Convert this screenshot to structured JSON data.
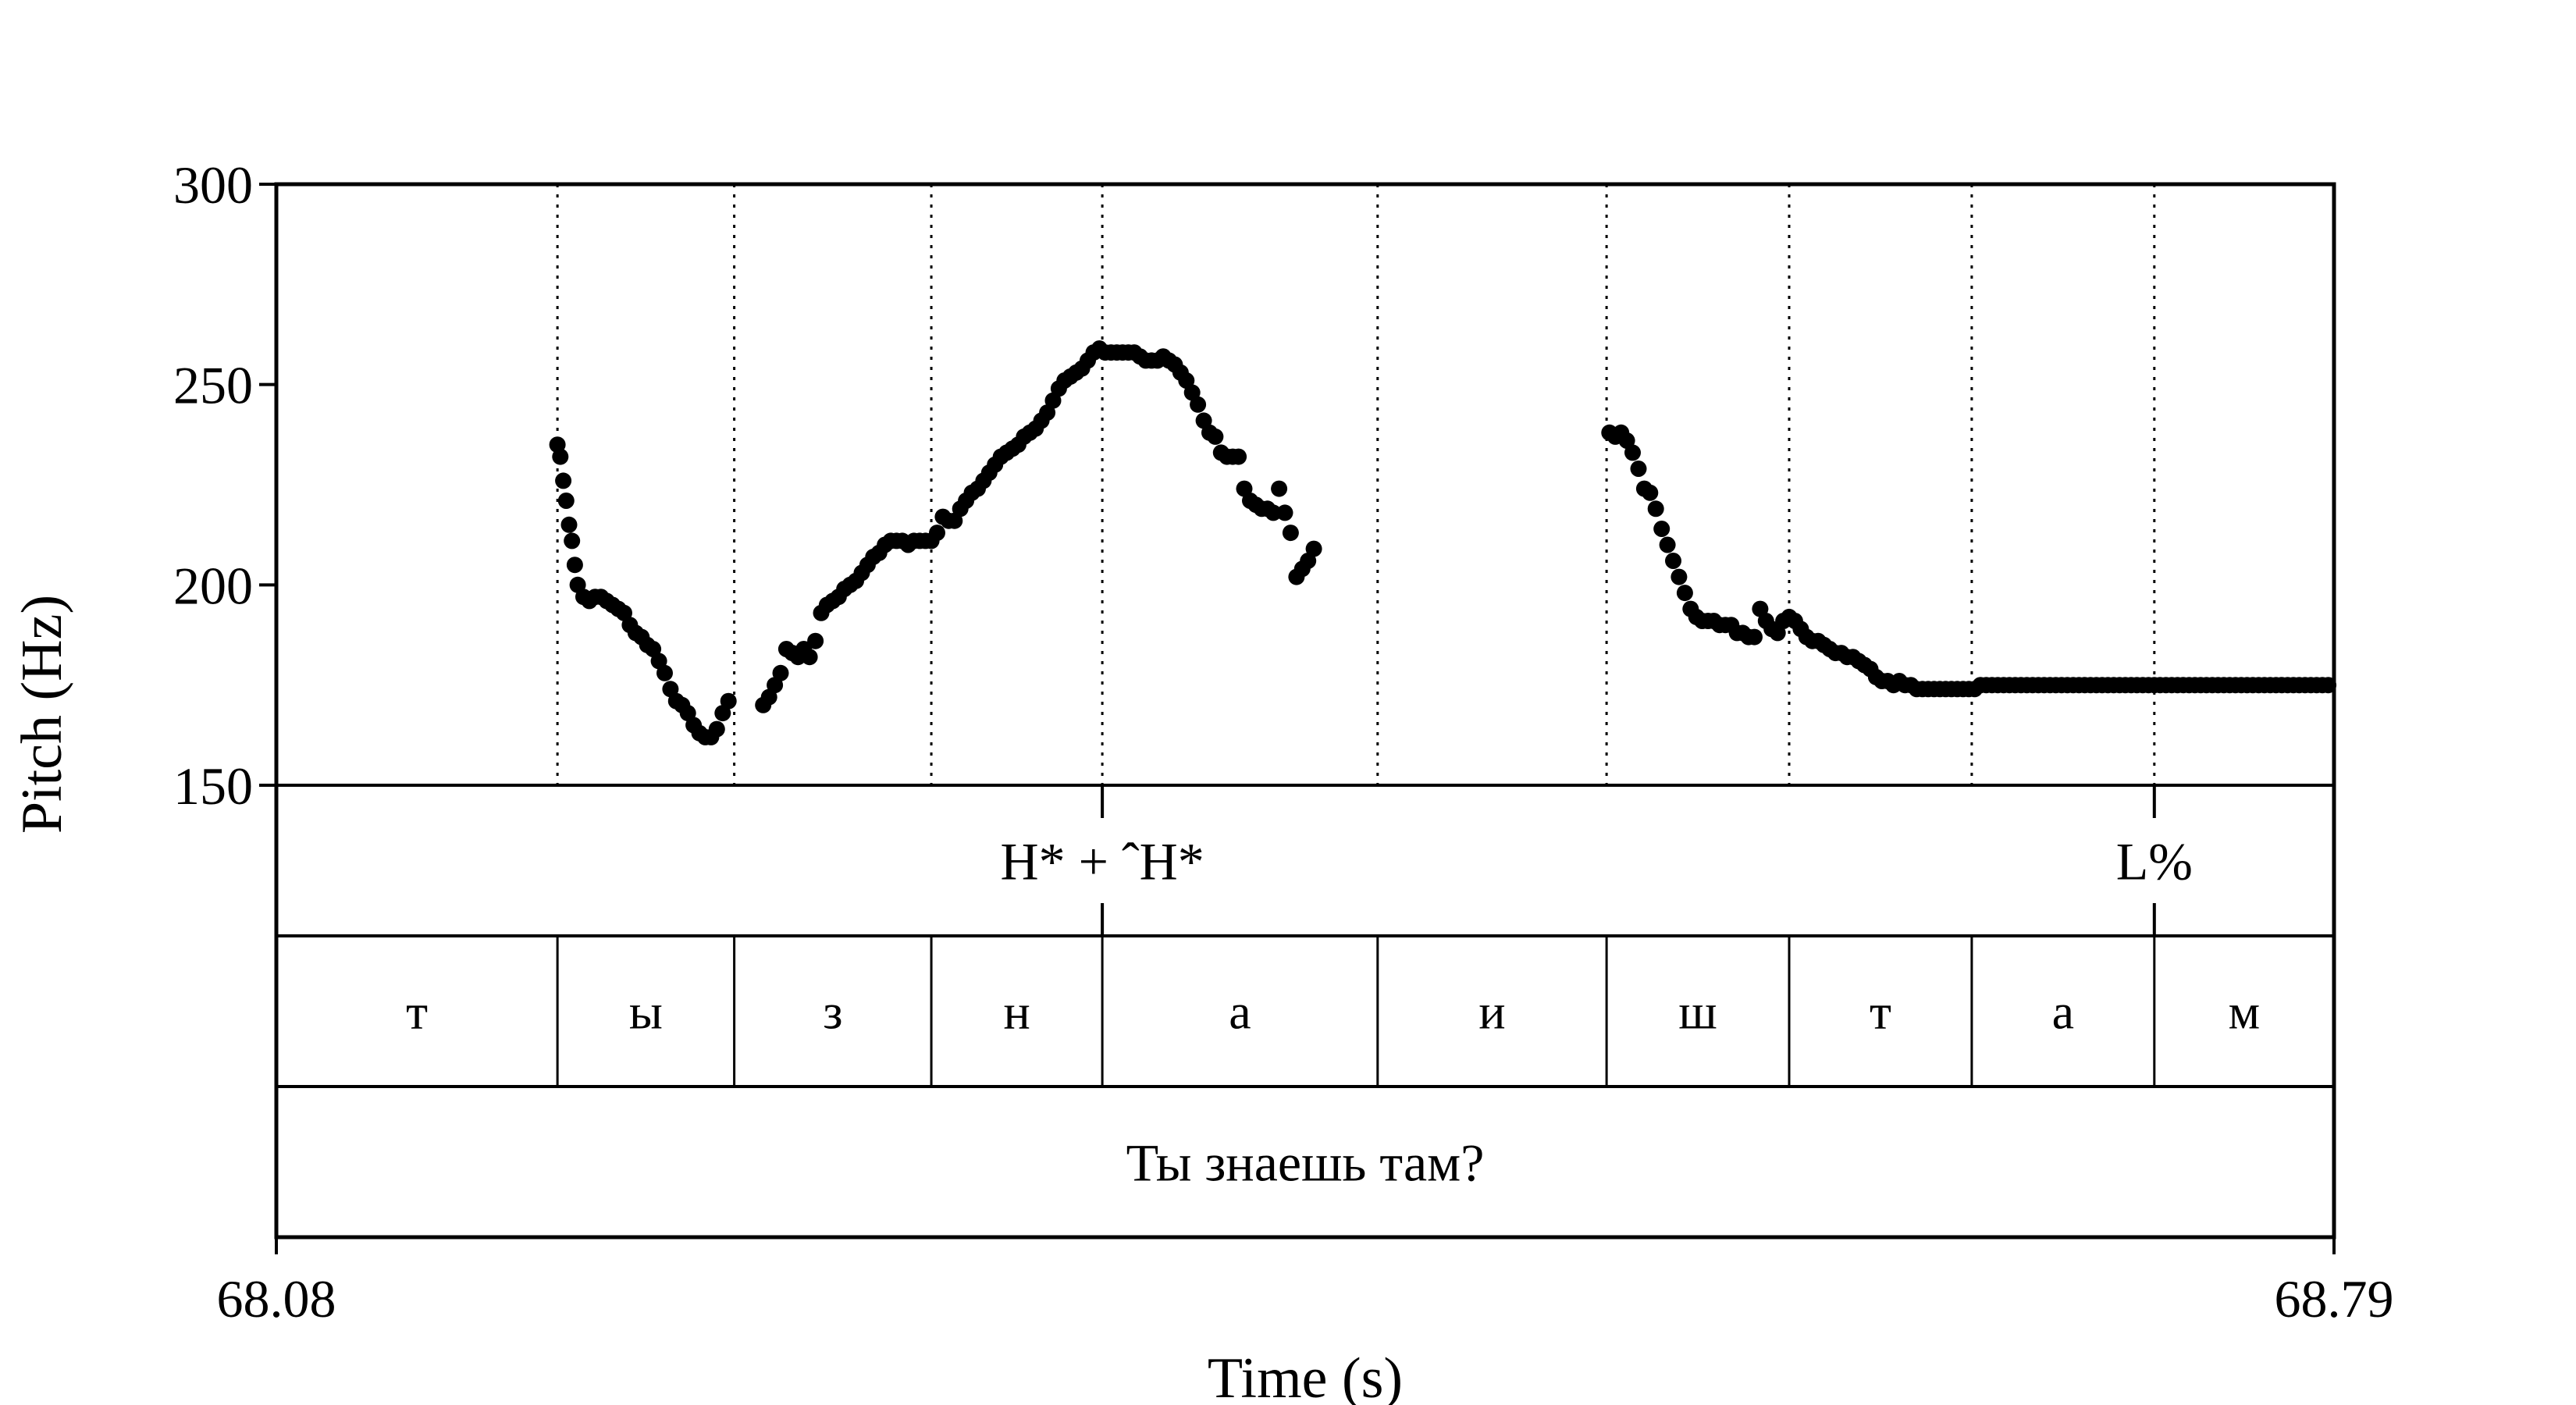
{
  "chart_data": {
    "type": "scatter",
    "title": "",
    "xlabel": "Time (s)",
    "ylabel": "Pitch (Hz)",
    "xlim": [
      68.08,
      68.79
    ],
    "ylim": [
      150,
      300
    ],
    "x_ticks": [
      "68.08",
      "68.79"
    ],
    "y_ticks": [
      "150",
      "200",
      "250",
      "300"
    ],
    "grid": false,
    "series": [
      {
        "points": [
          [
            68.177,
            235
          ],
          [
            68.178,
            232
          ],
          [
            68.179,
            226
          ],
          [
            68.18,
            221
          ],
          [
            68.181,
            215
          ],
          [
            68.182,
            211
          ],
          [
            68.183,
            205
          ],
          [
            68.184,
            200
          ],
          [
            68.186,
            197
          ],
          [
            68.188,
            196
          ],
          [
            68.19,
            197
          ],
          [
            68.192,
            197
          ],
          [
            68.194,
            196
          ],
          [
            68.196,
            195
          ],
          [
            68.198,
            194
          ],
          [
            68.2,
            193
          ],
          [
            68.202,
            190
          ],
          [
            68.204,
            188
          ],
          [
            68.206,
            187
          ],
          [
            68.208,
            185
          ],
          [
            68.21,
            184
          ],
          [
            68.212,
            181
          ],
          [
            68.214,
            178
          ],
          [
            68.216,
            174
          ],
          [
            68.218,
            171
          ],
          [
            68.22,
            170
          ],
          [
            68.222,
            168
          ],
          [
            68.224,
            165
          ],
          [
            68.226,
            163
          ],
          [
            68.228,
            162
          ],
          [
            68.23,
            162
          ],
          [
            68.232,
            164
          ],
          [
            68.234,
            168
          ],
          [
            68.236,
            171
          ],
          [
            68.248,
            170
          ],
          [
            68.25,
            172
          ],
          [
            68.252,
            175
          ],
          [
            68.254,
            178
          ],
          [
            68.256,
            184
          ],
          [
            68.258,
            183
          ],
          [
            68.26,
            182
          ],
          [
            68.262,
            184
          ],
          [
            68.264,
            182
          ],
          [
            68.266,
            186
          ],
          [
            68.268,
            193
          ],
          [
            68.27,
            195
          ],
          [
            68.272,
            196
          ],
          [
            68.274,
            197
          ],
          [
            68.276,
            199
          ],
          [
            68.278,
            200
          ],
          [
            68.28,
            201
          ],
          [
            68.282,
            203
          ],
          [
            68.284,
            205
          ],
          [
            68.286,
            207
          ],
          [
            68.288,
            208
          ],
          [
            68.29,
            210
          ],
          [
            68.292,
            211
          ],
          [
            68.294,
            211
          ],
          [
            68.296,
            211
          ],
          [
            68.298,
            210
          ],
          [
            68.3,
            211
          ],
          [
            68.302,
            211
          ],
          [
            68.304,
            211
          ],
          [
            68.306,
            211
          ],
          [
            68.308,
            213
          ],
          [
            68.31,
            217
          ],
          [
            68.312,
            216
          ],
          [
            68.314,
            216
          ],
          [
            68.316,
            219
          ],
          [
            68.318,
            221
          ],
          [
            68.32,
            223
          ],
          [
            68.322,
            224
          ],
          [
            68.324,
            226
          ],
          [
            68.326,
            228
          ],
          [
            68.328,
            230
          ],
          [
            68.33,
            232
          ],
          [
            68.332,
            233
          ],
          [
            68.334,
            234
          ],
          [
            68.336,
            235
          ],
          [
            68.338,
            237
          ],
          [
            68.34,
            238
          ],
          [
            68.342,
            239
          ],
          [
            68.344,
            241
          ],
          [
            68.346,
            243
          ],
          [
            68.348,
            246
          ],
          [
            68.35,
            249
          ],
          [
            68.352,
            251
          ],
          [
            68.354,
            252
          ],
          [
            68.356,
            253
          ],
          [
            68.358,
            254
          ],
          [
            68.36,
            256
          ],
          [
            68.362,
            258
          ],
          [
            68.364,
            259
          ],
          [
            68.366,
            258
          ],
          [
            68.368,
            258
          ],
          [
            68.37,
            258
          ],
          [
            68.372,
            258
          ],
          [
            68.374,
            258
          ],
          [
            68.376,
            258
          ],
          [
            68.378,
            257
          ],
          [
            68.38,
            256
          ],
          [
            68.382,
            256
          ],
          [
            68.384,
            256
          ],
          [
            68.386,
            257
          ],
          [
            68.388,
            256
          ],
          [
            68.39,
            255
          ],
          [
            68.392,
            253
          ],
          [
            68.394,
            251
          ],
          [
            68.396,
            248
          ],
          [
            68.398,
            245
          ],
          [
            68.4,
            241
          ],
          [
            68.402,
            238
          ],
          [
            68.404,
            237
          ],
          [
            68.406,
            233
          ],
          [
            68.408,
            232
          ],
          [
            68.41,
            232
          ],
          [
            68.412,
            232
          ],
          [
            68.414,
            224
          ],
          [
            68.416,
            221
          ],
          [
            68.418,
            220
          ],
          [
            68.42,
            219
          ],
          [
            68.422,
            219
          ],
          [
            68.424,
            218
          ],
          [
            68.426,
            224
          ],
          [
            68.428,
            218
          ],
          [
            68.43,
            213
          ],
          [
            68.432,
            202
          ],
          [
            68.434,
            204
          ],
          [
            68.436,
            206
          ],
          [
            68.438,
            209
          ],
          [
            68.54,
            238
          ],
          [
            68.542,
            237
          ],
          [
            68.544,
            238
          ],
          [
            68.546,
            236
          ],
          [
            68.548,
            233
          ],
          [
            68.55,
            229
          ],
          [
            68.552,
            224
          ],
          [
            68.554,
            223
          ],
          [
            68.556,
            219
          ],
          [
            68.558,
            214
          ],
          [
            68.56,
            210
          ],
          [
            68.562,
            206
          ],
          [
            68.564,
            202
          ],
          [
            68.566,
            198
          ],
          [
            68.568,
            194
          ],
          [
            68.57,
            192
          ],
          [
            68.572,
            191
          ],
          [
            68.574,
            191
          ],
          [
            68.576,
            191
          ],
          [
            68.578,
            190
          ],
          [
            68.58,
            190
          ],
          [
            68.582,
            190
          ],
          [
            68.584,
            188
          ],
          [
            68.586,
            188
          ],
          [
            68.588,
            187
          ],
          [
            68.59,
            187
          ],
          [
            68.592,
            194
          ],
          [
            68.594,
            191
          ],
          [
            68.596,
            189
          ],
          [
            68.598,
            188
          ],
          [
            68.6,
            191
          ],
          [
            68.602,
            192
          ],
          [
            68.604,
            191
          ],
          [
            68.606,
            189
          ],
          [
            68.608,
            187
          ],
          [
            68.61,
            186
          ],
          [
            68.612,
            186
          ],
          [
            68.614,
            185
          ],
          [
            68.616,
            184
          ],
          [
            68.618,
            183
          ],
          [
            68.62,
            183
          ],
          [
            68.622,
            182
          ],
          [
            68.624,
            182
          ],
          [
            68.626,
            181
          ],
          [
            68.628,
            180
          ],
          [
            68.63,
            179
          ],
          [
            68.632,
            177
          ],
          [
            68.634,
            176
          ],
          [
            68.636,
            176
          ],
          [
            68.638,
            175
          ],
          [
            68.64,
            176
          ],
          [
            68.642,
            175
          ],
          [
            68.644,
            175
          ],
          [
            68.646,
            174
          ],
          [
            68.648,
            174
          ],
          [
            68.65,
            174
          ],
          [
            68.652,
            174
          ],
          [
            68.654,
            174
          ],
          [
            68.656,
            174
          ],
          [
            68.658,
            174
          ],
          [
            68.66,
            174
          ],
          [
            68.662,
            174
          ],
          [
            68.664,
            174
          ],
          [
            68.666,
            174
          ],
          [
            68.668,
            175
          ],
          [
            68.67,
            175
          ],
          [
            68.672,
            175
          ],
          [
            68.674,
            175
          ],
          [
            68.676,
            175
          ],
          [
            68.678,
            175
          ],
          [
            68.68,
            175
          ],
          [
            68.682,
            175
          ],
          [
            68.684,
            175
          ],
          [
            68.686,
            175
          ],
          [
            68.688,
            175
          ],
          [
            68.69,
            175
          ],
          [
            68.692,
            175
          ],
          [
            68.694,
            175
          ],
          [
            68.696,
            175
          ],
          [
            68.698,
            175
          ],
          [
            68.7,
            175
          ],
          [
            68.702,
            175
          ],
          [
            68.704,
            175
          ],
          [
            68.706,
            175
          ],
          [
            68.708,
            175
          ],
          [
            68.71,
            175
          ],
          [
            68.712,
            175
          ],
          [
            68.714,
            175
          ],
          [
            68.716,
            175
          ],
          [
            68.718,
            175
          ],
          [
            68.72,
            175
          ],
          [
            68.722,
            175
          ],
          [
            68.724,
            175
          ],
          [
            68.726,
            175
          ],
          [
            68.728,
            175
          ],
          [
            68.73,
            175
          ],
          [
            68.732,
            175
          ],
          [
            68.734,
            175
          ],
          [
            68.736,
            175
          ],
          [
            68.738,
            175
          ],
          [
            68.74,
            175
          ],
          [
            68.742,
            175
          ],
          [
            68.744,
            175
          ],
          [
            68.746,
            175
          ],
          [
            68.748,
            175
          ],
          [
            68.75,
            175
          ],
          [
            68.752,
            175
          ],
          [
            68.754,
            175
          ],
          [
            68.756,
            175
          ],
          [
            68.758,
            175
          ],
          [
            68.76,
            175
          ],
          [
            68.762,
            175
          ],
          [
            68.764,
            175
          ],
          [
            68.766,
            175
          ],
          [
            68.768,
            175
          ],
          [
            68.77,
            175
          ],
          [
            68.772,
            175
          ],
          [
            68.774,
            175
          ],
          [
            68.776,
            175
          ],
          [
            68.778,
            175
          ],
          [
            68.78,
            175
          ],
          [
            68.782,
            175
          ],
          [
            68.784,
            175
          ],
          [
            68.786,
            175
          ],
          [
            68.788,
            175
          ]
        ]
      }
    ],
    "boundaries": [
      68.177,
      68.238,
      68.306,
      68.365,
      68.46,
      68.539,
      68.602,
      68.665,
      68.728
    ],
    "tiers": [
      {
        "name": "tones",
        "labels": [
          {
            "time": 68.365,
            "text": "H* + ˆH*"
          },
          {
            "time": 68.728,
            "text": "L%"
          }
        ]
      },
      {
        "name": "phones",
        "segments": [
          {
            "start": 68.08,
            "end": 68.177,
            "text": "т"
          },
          {
            "start": 68.177,
            "end": 68.238,
            "text": "ы"
          },
          {
            "start": 68.238,
            "end": 68.306,
            "text": "з"
          },
          {
            "start": 68.306,
            "end": 68.365,
            "text": "н"
          },
          {
            "start": 68.365,
            "end": 68.46,
            "text": "а"
          },
          {
            "start": 68.46,
            "end": 68.539,
            "text": "и"
          },
          {
            "start": 68.539,
            "end": 68.602,
            "text": "ш"
          },
          {
            "start": 68.602,
            "end": 68.665,
            "text": "т"
          },
          {
            "start": 68.665,
            "end": 68.728,
            "text": "а"
          },
          {
            "start": 68.728,
            "end": 68.79,
            "text": "м"
          }
        ]
      },
      {
        "name": "sentence",
        "segments": [
          {
            "start": 68.08,
            "end": 68.79,
            "text": "Ты знаешь там?"
          }
        ]
      }
    ]
  }
}
